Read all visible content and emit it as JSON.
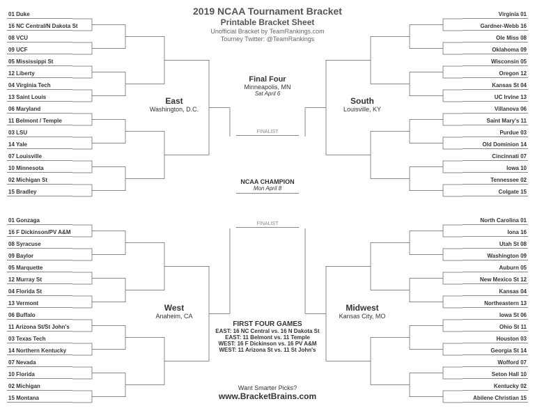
{
  "header": {
    "title": "2019 NCAA Tournament Bracket",
    "subtitle": "Printable Bracket Sheet",
    "credit": "Unofficial Bracket by TeamRankings.com",
    "twitter": "Tourney Twitter: @TeamRankings"
  },
  "regions": {
    "east": {
      "name": "East",
      "location": "Washington, D.C."
    },
    "west": {
      "name": "West",
      "location": "Anaheim, CA"
    },
    "south": {
      "name": "South",
      "location": "Louisville, KY"
    },
    "midwest": {
      "name": "Midwest",
      "location": "Kansas City, MO"
    }
  },
  "center": {
    "finalfour": {
      "title": "Final Four",
      "location": "Minneapolis, MN",
      "date": "Sat April 6"
    },
    "champion": {
      "title": "NCAA CHAMPION",
      "date": "Mon April 8"
    },
    "finalist": "FINALIST"
  },
  "firstfour": {
    "title": "FIRST FOUR GAMES",
    "games": [
      "EAST: 16 NC Central vs. 16 N Dakota St",
      "EAST: 11 Belmont vs. 11 Temple",
      "WEST: 16 F Dickinson vs. 16 PV A&M",
      "WEST: 11 Arizona St vs. 11 St John's"
    ]
  },
  "footer": {
    "question": "Want Smarter Picks?",
    "url": "www.BracketBrains.com"
  },
  "teams": {
    "east": [
      "01 Duke",
      "16 NC Central/N Dakota St",
      "08 VCU",
      "09 UCF",
      "05 Mississippi St",
      "12 Liberty",
      "04 Virginia Tech",
      "13 Saint Louis",
      "06 Maryland",
      "11 Belmont / Temple",
      "03 LSU",
      "14 Yale",
      "07 Louisville",
      "10 Minnesota",
      "02 Michigan St",
      "15 Bradley"
    ],
    "west": [
      "01 Gonzaga",
      "16 F Dickinson/PV A&M",
      "08 Syracuse",
      "09 Baylor",
      "05 Marquette",
      "12 Murray St",
      "04 Florida St",
      "13 Vermont",
      "06 Buffalo",
      "11 Arizona St/St John's",
      "03 Texas Tech",
      "14 Northern Kentucky",
      "07 Nevada",
      "10 Florida",
      "02 Michigan",
      "15 Montana"
    ],
    "south": [
      "Virginia 01",
      "Gardner-Webb 16",
      "Ole Miss 08",
      "Oklahoma 09",
      "Wisconsin 05",
      "Oregon 12",
      "Kansas St 04",
      "UC Irvine 13",
      "Villanova 06",
      "Saint Mary's 11",
      "Purdue 03",
      "Old Dominion 14",
      "Cincinnati 07",
      "Iowa 10",
      "Tennessee 02",
      "Colgate 15"
    ],
    "midwest": [
      "North Carolina 01",
      "Iona 16",
      "Utah St 08",
      "Washington 09",
      "Auburn 05",
      "New Mexico St 12",
      "Kansas 04",
      "Northeastern 13",
      "Iowa St 06",
      "Ohio St 11",
      "Houston 03",
      "Georgia St 14",
      "Wofford 07",
      "Seton Hall 10",
      "Kentucky 02",
      "Abilene Christian 15"
    ]
  },
  "layout": {
    "leftTeamX": 10,
    "rightTeamX": 664,
    "teamWidth": 94,
    "topRegionStartY": 16,
    "bottomRegionStartY": 312,
    "teamSpacing": 17,
    "lineColor": "#888888"
  }
}
